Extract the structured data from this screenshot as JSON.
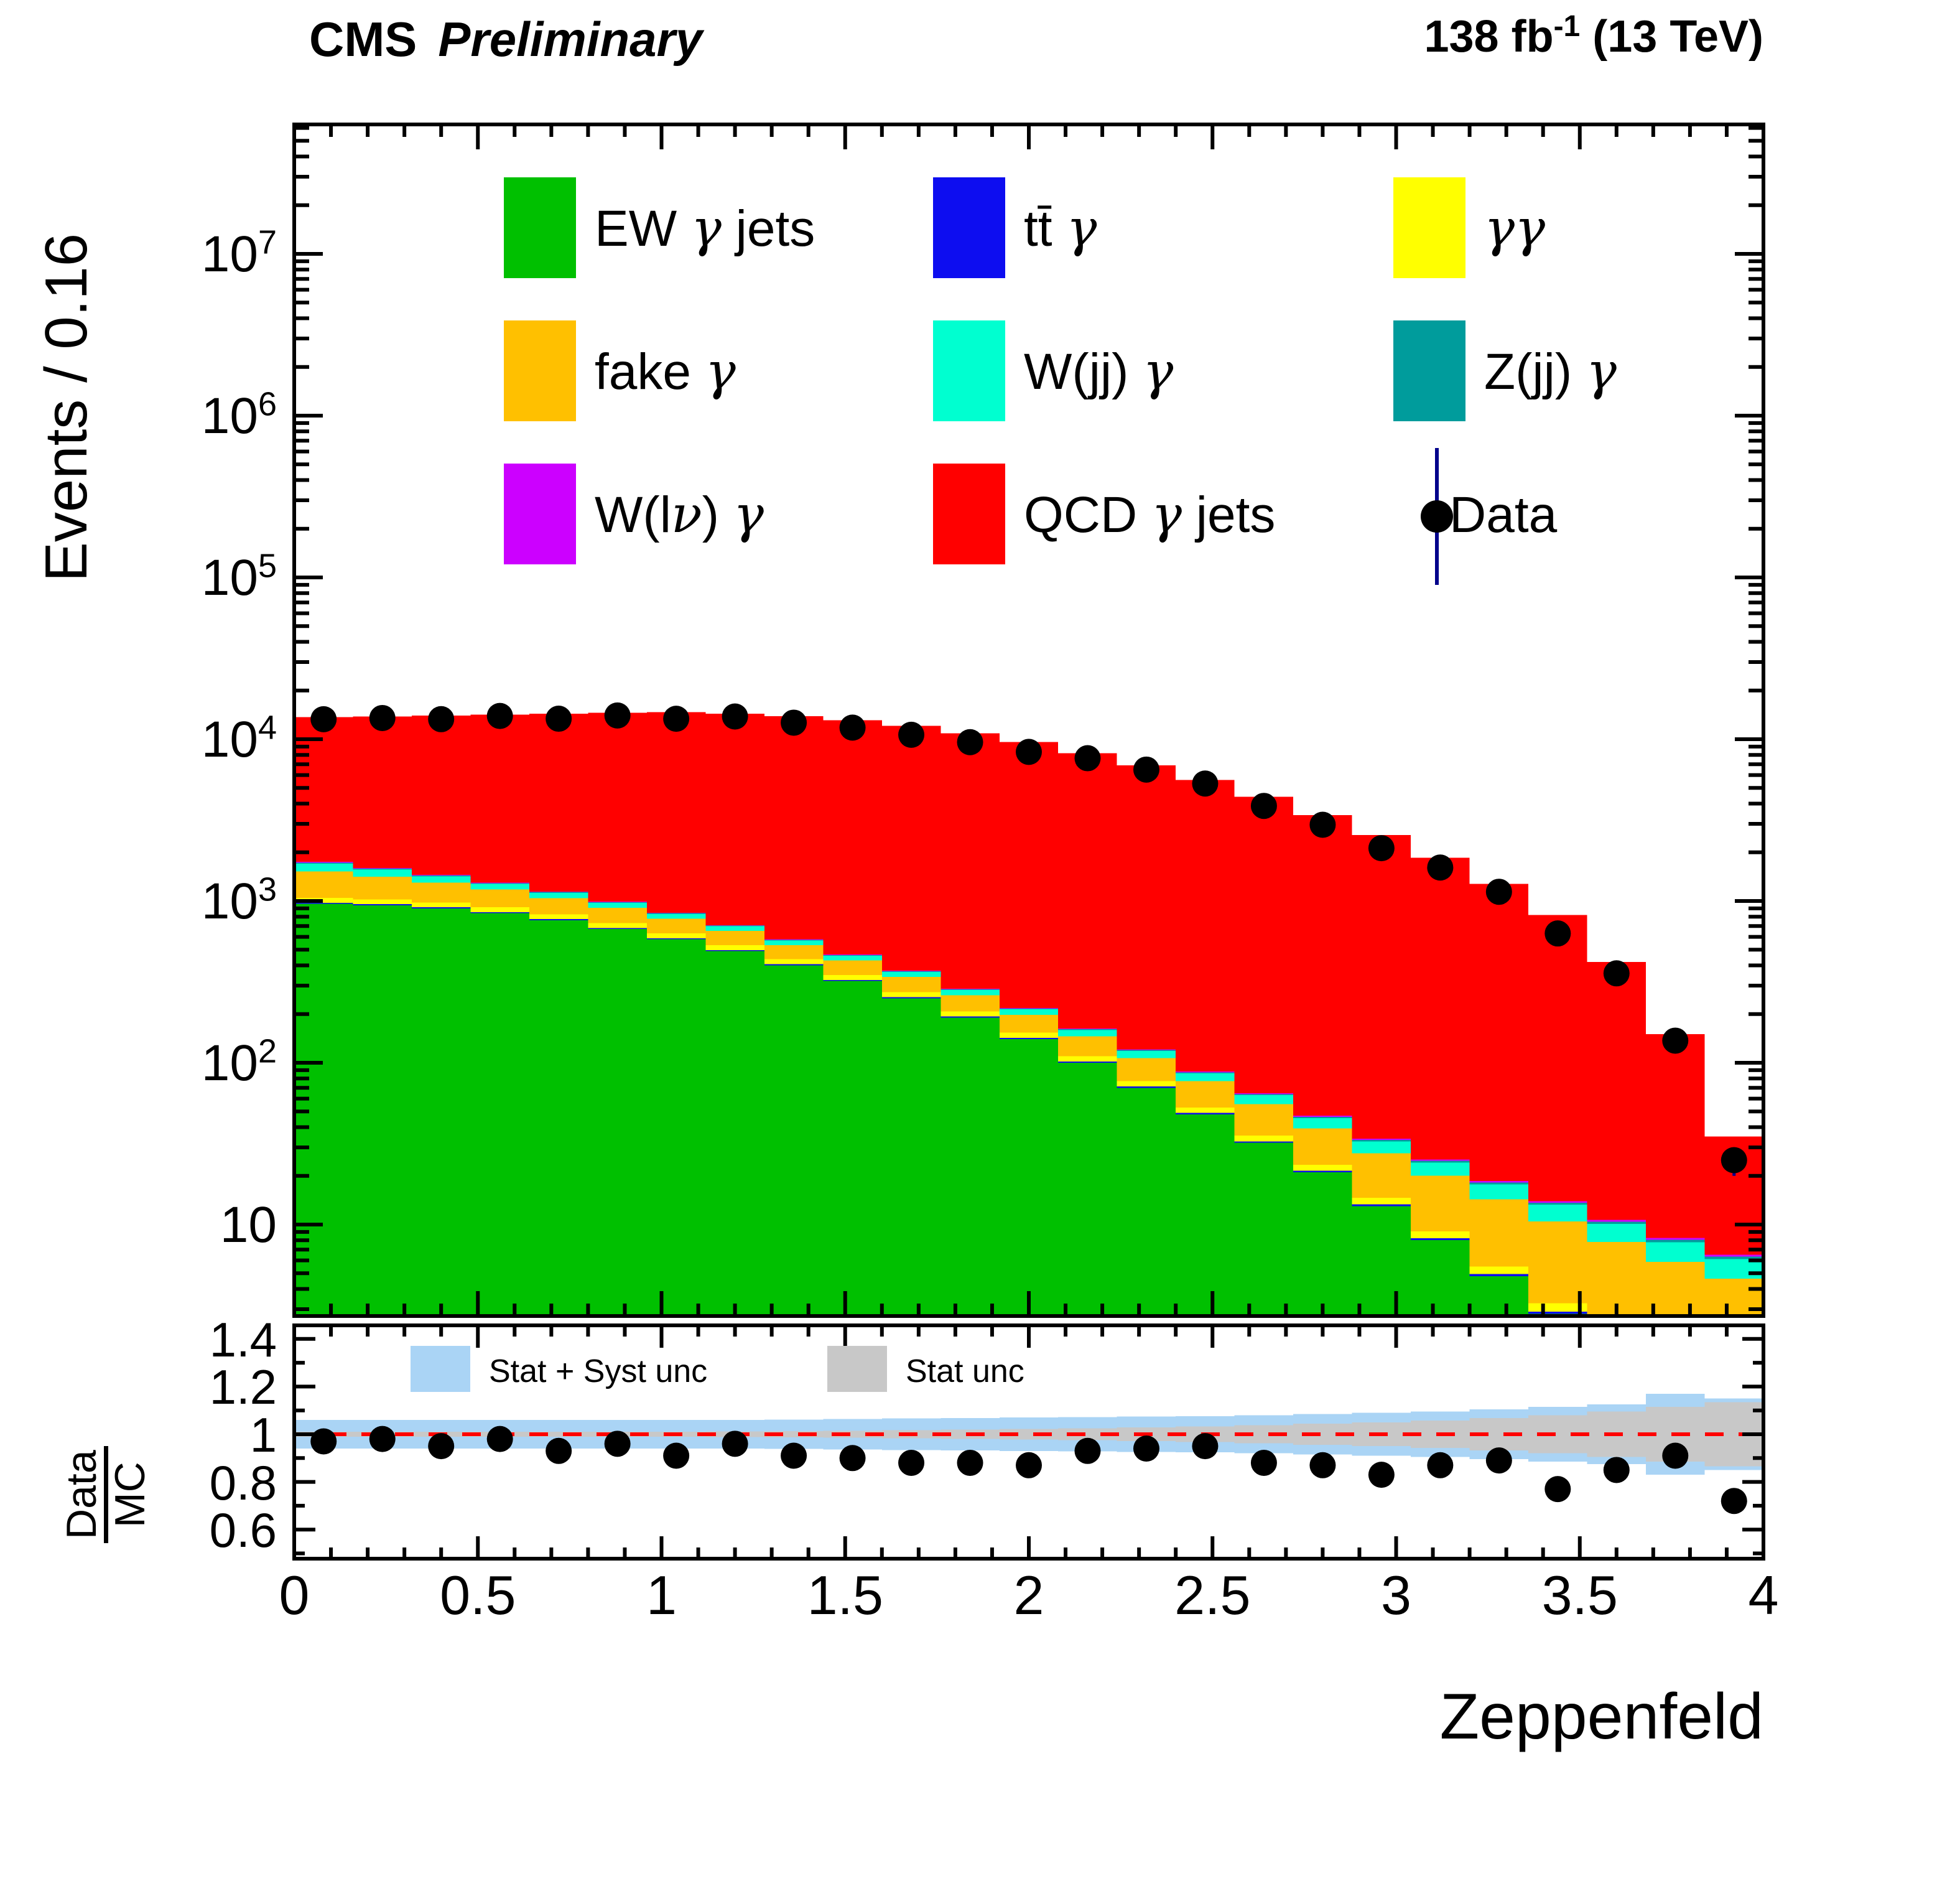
{
  "header": {
    "cms": "CMS",
    "preliminary": "Preliminary",
    "lumi_prefix": "138 fb",
    "lumi_sup": "-1",
    "lumi_suffix": " (13 TeV)"
  },
  "main": {
    "y_title": "Events / 0.16"
  },
  "x_title": "Zeppenfeld",
  "ratio_axis": {
    "num": "Data",
    "den": "MC"
  },
  "legend": {
    "entries": [
      {
        "label": "EW γ jets",
        "color": "#00C000"
      },
      {
        "label": "tt̄ γ",
        "color": "#0D0DF0"
      },
      {
        "label": "γγ",
        "color": "#FFFF00"
      },
      {
        "label": "fake γ",
        "color": "#FFC000"
      },
      {
        "label": "W(jj) γ",
        "color": "#00FFD0"
      },
      {
        "label": "Z(jj) γ",
        "color": "#009C9C"
      },
      {
        "label": "W(lν) γ",
        "color": "#CC00FF"
      },
      {
        "label": "QCD γ jets",
        "color": "#FF0000"
      }
    ],
    "data_label": "Data"
  },
  "ratio_legend": [
    {
      "label": "Stat + Syst unc",
      "color": "#AAD4F5"
    },
    {
      "label": "Stat unc",
      "color": "#C8C8C8"
    }
  ],
  "chart_data": {
    "type": "bar",
    "stacked": true,
    "title": "CMS Preliminary, 138 fb-1 (13 TeV)",
    "xlabel": "Zeppenfeld",
    "ylabel": "Events / 0.16",
    "x_range": [
      0,
      4
    ],
    "bin_width": 0.16,
    "n_bins": 25,
    "y_scale": "log",
    "y_range": [
      2.7,
      63000000
    ],
    "y_tick_exponents": [
      1,
      2,
      3,
      4,
      5,
      6,
      7
    ],
    "x_tick_labels": [
      "0",
      "0.5",
      "1",
      "1.5",
      "2",
      "2.5",
      "3",
      "3.5",
      "4"
    ],
    "x_tick_values": [
      0,
      0.5,
      1,
      1.5,
      2,
      2.5,
      3,
      3.5,
      4
    ],
    "series": [
      {
        "name": "EW γ jets",
        "color": "#00C000",
        "values": [
          960,
          940,
          900,
          840,
          760,
          670,
          580,
          490,
          400,
          320,
          250,
          190,
          140,
          100,
          70,
          48,
          32,
          21,
          13,
          8,
          4.8,
          2.8,
          1.6,
          0.9,
          0.5
        ]
      },
      {
        "name": "tt̄ γ",
        "color": "#0D0DF0",
        "values": [
          15,
          14.7,
          14,
          13,
          11.8,
          10.4,
          9,
          7.6,
          6.2,
          5,
          4,
          3.1,
          2.4,
          1.8,
          1.3,
          0.95,
          0.68,
          0.47,
          0.32,
          0.22,
          0.15,
          0.1,
          0.06,
          0.04,
          0.03
        ]
      },
      {
        "name": "γγ",
        "color": "#FFFF00",
        "values": [
          70,
          69,
          66,
          61,
          56,
          49,
          43,
          36,
          30,
          24,
          19,
          14.5,
          11,
          8,
          5.7,
          4,
          2.8,
          1.9,
          1.3,
          0.85,
          0.55,
          0.36,
          0.23,
          0.14,
          0.09
        ]
      },
      {
        "name": "fake γ",
        "color": "#FFC000",
        "values": [
          475,
          390,
          320,
          262,
          215,
          176,
          145,
          119,
          97,
          80,
          66,
          54,
          44,
          36,
          30,
          24,
          20,
          16,
          13,
          11,
          8.8,
          7.2,
          5.9,
          4.8,
          4
        ]
      },
      {
        "name": "W(jj) γ",
        "color": "#00FFD0",
        "values": [
          180,
          148,
          121,
          99,
          81,
          67,
          55,
          45,
          37,
          30,
          25,
          20,
          16.6,
          13.6,
          11.1,
          9.1,
          7.5,
          6.1,
          5,
          4.1,
          3.4,
          2.8,
          2.3,
          1.9,
          1.5
        ]
      },
      {
        "name": "Z(jj) γ",
        "color": "#009C9C",
        "values": [
          25,
          20.5,
          16.8,
          13.8,
          11.3,
          9.3,
          7.6,
          6.2,
          5.1,
          4.2,
          3.4,
          2.8,
          2.3,
          1.9,
          1.6,
          1.3,
          1.05,
          0.86,
          0.71,
          0.58,
          0.48,
          0.39,
          0.32,
          0.26,
          0.22
        ]
      },
      {
        "name": "W(lν) γ",
        "color": "#CC00FF",
        "values": [
          20,
          16.4,
          13.5,
          11,
          9,
          7.4,
          6.1,
          5,
          4.1,
          3.4,
          2.8,
          2.3,
          1.9,
          1.5,
          1.25,
          1.02,
          0.84,
          0.69,
          0.56,
          0.46,
          0.38,
          0.31,
          0.26,
          0.21,
          0.17
        ]
      },
      {
        "name": "QCD γ jets",
        "color": "#FF0000",
        "values": [
          11955,
          12200,
          12550,
          12900,
          13260,
          13610,
          13850,
          13690,
          13320,
          12630,
          11730,
          10610,
          9380,
          8040,
          6780,
          5510,
          4340,
          3350,
          2520,
          1825,
          1260,
          806,
          409,
          142,
          28.5
        ]
      }
    ],
    "total_mc": [
      13700,
      13800,
      14000,
      14200,
      14400,
      14600,
      14700,
      14400,
      13900,
      13100,
      12100,
      10900,
      9600,
      8200,
      6900,
      5600,
      4400,
      3400,
      2550,
      1850,
      1280,
      820,
      420,
      150,
      35
    ],
    "data_points": {
      "label": "Data",
      "marker": "filled-circle",
      "color": "#000000",
      "values": [
        13290,
        13520,
        13300,
        13920,
        13390,
        14020,
        13380,
        13820,
        12650,
        11790,
        10650,
        9590,
        8350,
        7630,
        6490,
        5320,
        3870,
        2960,
        2120,
        1610,
        1140,
        630,
        357,
        137,
        25
      ]
    },
    "ratio_panel": {
      "y_ticks": [
        0.6,
        0.8,
        1,
        1.2,
        1.4
      ],
      "y_tick_labels": [
        "0.6",
        "0.8",
        "1",
        "1.2",
        "1.4"
      ],
      "y_range": [
        0.478,
        1.457
      ],
      "ref_line": 1,
      "ref_line_color": "#FF0000",
      "values": [
        0.97,
        0.98,
        0.95,
        0.98,
        0.93,
        0.96,
        0.91,
        0.96,
        0.91,
        0.9,
        0.88,
        0.88,
        0.87,
        0.93,
        0.94,
        0.95,
        0.88,
        0.87,
        0.83,
        0.87,
        0.89,
        0.77,
        0.85,
        0.91,
        0.72
      ],
      "syst_half": [
        0.06,
        0.06,
        0.06,
        0.06,
        0.06,
        0.06,
        0.06,
        0.06,
        0.062,
        0.064,
        0.066,
        0.068,
        0.07,
        0.072,
        0.074,
        0.076,
        0.08,
        0.085,
        0.09,
        0.095,
        0.105,
        0.115,
        0.125,
        0.17,
        0.15
      ],
      "stat_half": [
        0.01,
        0.01,
        0.01,
        0.01,
        0.01,
        0.01,
        0.011,
        0.012,
        0.013,
        0.015,
        0.017,
        0.019,
        0.022,
        0.025,
        0.029,
        0.033,
        0.038,
        0.044,
        0.05,
        0.058,
        0.068,
        0.08,
        0.095,
        0.115,
        0.135
      ]
    }
  }
}
